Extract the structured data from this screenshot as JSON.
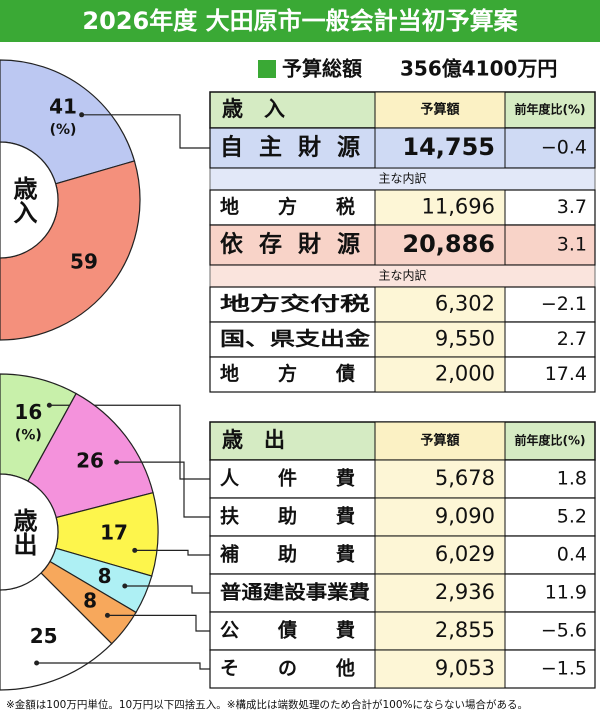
{
  "header": {
    "title": "2026年度 大田原市一般会計当初予算案",
    "total_label": "予算総額",
    "total": "356億4100万円"
  },
  "chart_data": [
    {
      "type": "pie",
      "center_label": "歳入",
      "unit_label": "(%)",
      "values": [
        41,
        59
      ],
      "colors": [
        "#bcc8f2",
        "#f4907c"
      ]
    },
    {
      "type": "pie",
      "center_label": "歳出",
      "unit_label": "(%)",
      "values": [
        16,
        26,
        17,
        8,
        8,
        25
      ],
      "colors": [
        "#c8f0aa",
        "#f492dc",
        "#fdf54c",
        "#aef0f4",
        "#f7a85c",
        "#ffffff"
      ]
    }
  ],
  "revenue_table": {
    "header": [
      "歳　入",
      "予算額",
      "前年度比(%)"
    ],
    "groups": [
      {
        "name": "自主財源",
        "amount": "14,755",
        "change": "−0.4",
        "color": "#cfdaf4",
        "breakdown_label": "主な内訳",
        "items": [
          {
            "name": "地方税",
            "amount": "11,696",
            "change": "3.7"
          }
        ]
      },
      {
        "name": "依存財源",
        "amount": "20,886",
        "change": "3.1",
        "color": "#f8d3c8",
        "breakdown_label": "主な内訳",
        "items": [
          {
            "name": "地方交付税",
            "amount": "6,302",
            "change": "−2.1"
          },
          {
            "name": "国、県支出金",
            "amount": "9,550",
            "change": "2.7"
          },
          {
            "name": "地方債",
            "amount": "2,000",
            "change": "17.4"
          }
        ]
      }
    ]
  },
  "expenditure_table": {
    "header": [
      "歳　出",
      "予算額",
      "前年度比(%)"
    ],
    "rows": [
      {
        "name": "人件費",
        "amount": "5,678",
        "change": "1.8"
      },
      {
        "name": "扶助費",
        "amount": "9,090",
        "change": "5.2"
      },
      {
        "name": "補助費",
        "amount": "6,029",
        "change": "0.4"
      },
      {
        "name": "普通建設事業費",
        "amount": "2,936",
        "change": "11.9"
      },
      {
        "name": "公債費",
        "amount": "2,855",
        "change": "−5.6"
      },
      {
        "name": "その他",
        "amount": "9,053",
        "change": "−1.5"
      }
    ]
  },
  "footnote": "※金額は100万円単位。10万円以下四捨五入。※構成比は端数処理のため合計が100%にならない場合がある。"
}
